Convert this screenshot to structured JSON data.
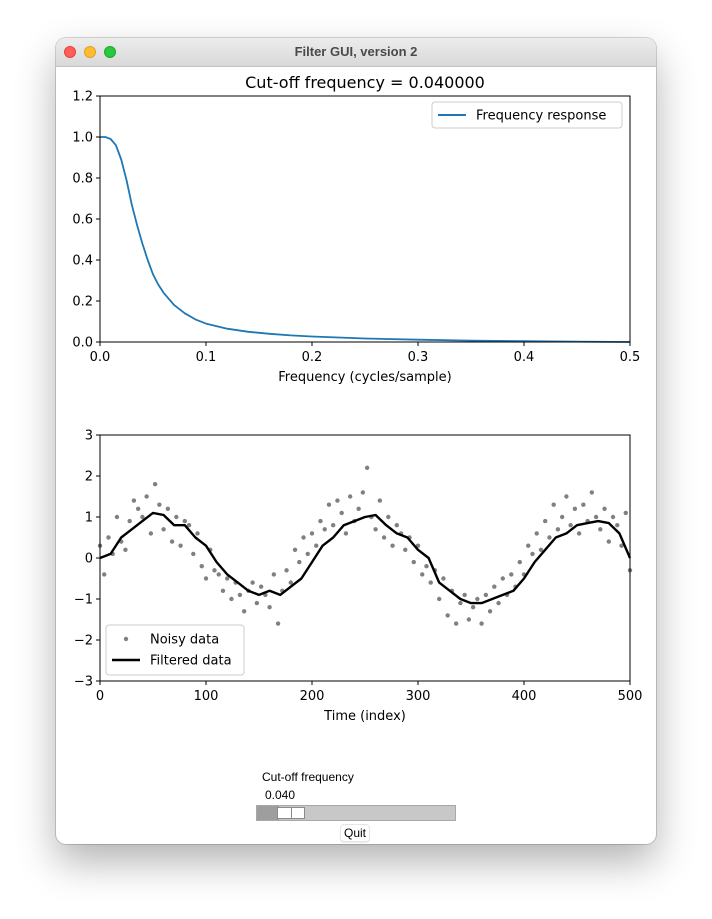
{
  "window": {
    "title": "Filter GUI, version 2"
  },
  "controls": {
    "slider_label": "Cut-off frequency",
    "slider_value_text": "0.040",
    "slider_value": 0.04,
    "slider_min": 0.0,
    "slider_max": 0.5,
    "quit_label": "Quit"
  },
  "chart_data": [
    {
      "type": "line",
      "title": "Cut-off frequency = 0.040000",
      "xlabel": "Frequency (cycles/sample)",
      "ylabel": "",
      "xlim": [
        0,
        0.5
      ],
      "ylim": [
        0,
        1.2
      ],
      "xticks": [
        "0.0",
        "0.1",
        "0.2",
        "0.3",
        "0.4",
        "0.5"
      ],
      "yticks": [
        "0.0",
        "0.2",
        "0.4",
        "0.6",
        "0.8",
        "1.0",
        "1.2"
      ],
      "grid": false,
      "legend": "top-right",
      "series": [
        {
          "name": "Frequency response",
          "color": "#1f77b4",
          "x": [
            0,
            0.005,
            0.01,
            0.015,
            0.02,
            0.025,
            0.03,
            0.035,
            0.04,
            0.045,
            0.05,
            0.055,
            0.06,
            0.07,
            0.08,
            0.09,
            0.1,
            0.12,
            0.14,
            0.16,
            0.18,
            0.2,
            0.25,
            0.3,
            0.35,
            0.4,
            0.45,
            0.5
          ],
          "y": [
            1.0,
            1.0,
            0.99,
            0.96,
            0.89,
            0.79,
            0.67,
            0.57,
            0.48,
            0.4,
            0.33,
            0.28,
            0.24,
            0.18,
            0.14,
            0.11,
            0.09,
            0.065,
            0.05,
            0.04,
            0.032,
            0.027,
            0.017,
            0.011,
            0.007,
            0.004,
            0.002,
            0.0
          ]
        }
      ]
    },
    {
      "type": "scatter",
      "title": "",
      "xlabel": "Time (index)",
      "ylabel": "",
      "xlim": [
        0,
        500
      ],
      "ylim": [
        -3,
        3
      ],
      "xticks": [
        "0",
        "100",
        "200",
        "300",
        "400",
        "500"
      ],
      "yticks": [
        "−3",
        "−2",
        "−1",
        "0",
        "1",
        "2",
        "3"
      ],
      "grid": false,
      "legend": "bottom-left",
      "series": [
        {
          "name": "Noisy data",
          "color": "#808080",
          "marker": "dot",
          "x": [
            0,
            4,
            8,
            12,
            16,
            20,
            24,
            28,
            32,
            36,
            40,
            44,
            48,
            52,
            56,
            60,
            64,
            68,
            72,
            76,
            80,
            84,
            88,
            92,
            96,
            100,
            104,
            108,
            112,
            116,
            120,
            124,
            128,
            132,
            136,
            140,
            144,
            148,
            152,
            156,
            160,
            164,
            168,
            172,
            176,
            180,
            184,
            188,
            192,
            196,
            200,
            204,
            208,
            212,
            216,
            220,
            224,
            228,
            232,
            236,
            240,
            244,
            248,
            252,
            256,
            260,
            264,
            268,
            272,
            276,
            280,
            284,
            288,
            292,
            296,
            300,
            304,
            308,
            312,
            316,
            320,
            324,
            328,
            332,
            336,
            340,
            344,
            348,
            352,
            356,
            360,
            364,
            368,
            372,
            376,
            380,
            384,
            388,
            392,
            396,
            400,
            404,
            408,
            412,
            416,
            420,
            424,
            428,
            432,
            436,
            440,
            444,
            448,
            452,
            456,
            460,
            464,
            468,
            472,
            476,
            480,
            484,
            488,
            492,
            496,
            500
          ],
          "y": [
            0.3,
            -0.4,
            0.5,
            0.1,
            1.0,
            0.4,
            0.2,
            0.9,
            1.4,
            1.2,
            1.0,
            1.5,
            0.6,
            1.8,
            1.3,
            0.7,
            1.2,
            0.4,
            1.0,
            0.3,
            0.9,
            0.8,
            0.1,
            0.6,
            -0.2,
            -0.5,
            0.2,
            -0.3,
            -0.4,
            -0.8,
            -0.5,
            -1.0,
            -0.6,
            -0.9,
            -1.3,
            -0.8,
            -0.6,
            -1.1,
            -0.7,
            -0.9,
            -1.2,
            -0.4,
            -1.6,
            -0.8,
            -0.3,
            -0.6,
            0.2,
            -0.1,
            0.5,
            0.1,
            0.6,
            0.3,
            0.9,
            0.7,
            1.3,
            0.8,
            1.4,
            1.1,
            0.6,
            1.5,
            0.9,
            1.2,
            1.6,
            2.2,
            1.0,
            0.7,
            1.4,
            0.5,
            1.0,
            0.3,
            0.8,
            0.6,
            0.2,
            0.5,
            -0.1,
            0.3,
            -0.4,
            -0.2,
            -0.6,
            -0.3,
            -1.0,
            -0.5,
            -1.4,
            -0.8,
            -1.6,
            -1.1,
            -0.9,
            -1.5,
            -1.2,
            -1.0,
            -1.6,
            -0.9,
            -1.3,
            -0.7,
            -1.1,
            -0.5,
            -0.9,
            -0.4,
            -0.7,
            -0.1,
            -0.4,
            0.3,
            0.1,
            0.6,
            0.2,
            0.9,
            0.5,
            1.3,
            0.7,
            1.0,
            1.5,
            0.8,
            1.2,
            0.6,
            1.3,
            0.9,
            1.6,
            1.0,
            0.7,
            1.2,
            0.4,
            1.0,
            0.8,
            0.3,
            1.1,
            -0.3
          ]
        },
        {
          "name": "Filtered data",
          "color": "#000000",
          "x": [
            0,
            10,
            20,
            30,
            40,
            50,
            60,
            70,
            80,
            90,
            100,
            110,
            120,
            130,
            140,
            150,
            160,
            170,
            180,
            190,
            200,
            210,
            220,
            230,
            240,
            250,
            260,
            270,
            280,
            290,
            300,
            310,
            320,
            330,
            340,
            350,
            360,
            370,
            380,
            390,
            400,
            410,
            420,
            430,
            440,
            450,
            460,
            470,
            480,
            490,
            500
          ],
          "y": [
            0.0,
            0.1,
            0.5,
            0.7,
            0.9,
            1.1,
            1.05,
            0.8,
            0.8,
            0.5,
            0.3,
            -0.1,
            -0.4,
            -0.6,
            -0.8,
            -0.9,
            -0.8,
            -0.9,
            -0.7,
            -0.5,
            -0.1,
            0.3,
            0.5,
            0.8,
            0.9,
            1.0,
            1.05,
            0.8,
            0.6,
            0.5,
            0.2,
            0.0,
            -0.6,
            -0.8,
            -1.0,
            -1.1,
            -1.1,
            -1.0,
            -0.9,
            -0.8,
            -0.5,
            -0.1,
            0.2,
            0.5,
            0.6,
            0.8,
            0.85,
            0.9,
            0.85,
            0.6,
            0.0
          ]
        }
      ]
    }
  ]
}
